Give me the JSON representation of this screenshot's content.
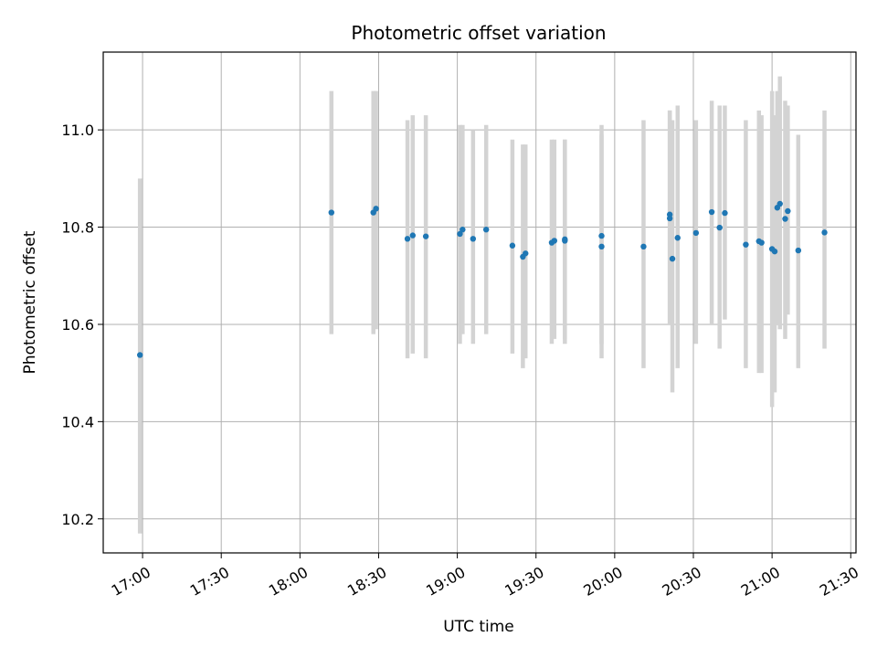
{
  "chart_data": {
    "type": "scatter",
    "title": "Photometric offset variation",
    "xlabel": "UTC time",
    "ylabel": "Photometric offset",
    "xlim": [
      "16:45",
      "21:32"
    ],
    "ylim": [
      10.13,
      11.16
    ],
    "xticks": [
      "17:00",
      "17:30",
      "18:00",
      "18:30",
      "19:00",
      "19:30",
      "20:00",
      "20:30",
      "21:00",
      "21:30"
    ],
    "yticks": [
      10.2,
      10.4,
      10.6,
      10.8,
      11.0
    ],
    "ytick_labels": [
      "10.2",
      "10.4",
      "10.6",
      "10.8",
      "11.0"
    ],
    "grid": true,
    "colors": {
      "points": "#1f77b4",
      "errorbars": "#d3d3d3",
      "grid": "#b0b0b0"
    },
    "points": [
      {
        "x": "16:59",
        "y": 10.537,
        "ymin": 10.17,
        "ymax": 10.9
      },
      {
        "x": "18:12",
        "y": 10.83,
        "ymin": 10.58,
        "ymax": 11.08
      },
      {
        "x": "18:28",
        "y": 10.83,
        "ymin": 10.58,
        "ymax": 11.08
      },
      {
        "x": "18:29",
        "y": 10.838,
        "ymin": 10.59,
        "ymax": 11.08
      },
      {
        "x": "18:41",
        "y": 10.776,
        "ymin": 10.53,
        "ymax": 11.02
      },
      {
        "x": "18:43",
        "y": 10.783,
        "ymin": 10.54,
        "ymax": 11.03
      },
      {
        "x": "18:48",
        "y": 10.781,
        "ymin": 10.53,
        "ymax": 11.03
      },
      {
        "x": "19:01",
        "y": 10.786,
        "ymin": 10.56,
        "ymax": 11.01
      },
      {
        "x": "19:02",
        "y": 10.795,
        "ymin": 10.58,
        "ymax": 11.01
      },
      {
        "x": "19:06",
        "y": 10.776,
        "ymin": 10.56,
        "ymax": 11.0
      },
      {
        "x": "19:11",
        "y": 10.795,
        "ymin": 10.58,
        "ymax": 11.01
      },
      {
        "x": "19:21",
        "y": 10.762,
        "ymin": 10.54,
        "ymax": 10.98
      },
      {
        "x": "19:25",
        "y": 10.739,
        "ymin": 10.51,
        "ymax": 10.97
      },
      {
        "x": "19:26",
        "y": 10.746,
        "ymin": 10.53,
        "ymax": 10.97
      },
      {
        "x": "19:36",
        "y": 10.768,
        "ymin": 10.56,
        "ymax": 10.98
      },
      {
        "x": "19:37",
        "y": 10.772,
        "ymin": 10.57,
        "ymax": 10.98
      },
      {
        "x": "19:41",
        "y": 10.775,
        "ymin": 10.57,
        "ymax": 10.98
      },
      {
        "x": "19:41",
        "y": 10.772,
        "ymin": 10.56,
        "ymax": 10.98
      },
      {
        "x": "19:55",
        "y": 10.76,
        "ymin": 10.53,
        "ymax": 10.99
      },
      {
        "x": "19:55",
        "y": 10.782,
        "ymin": 10.56,
        "ymax": 11.01
      },
      {
        "x": "20:11",
        "y": 10.76,
        "ymin": 10.51,
        "ymax": 11.02
      },
      {
        "x": "20:21",
        "y": 10.826,
        "ymin": 10.6,
        "ymax": 11.04
      },
      {
        "x": "20:21",
        "y": 10.818,
        "ymin": 10.6,
        "ymax": 11.04
      },
      {
        "x": "20:22",
        "y": 10.735,
        "ymin": 10.46,
        "ymax": 11.02
      },
      {
        "x": "20:24",
        "y": 10.778,
        "ymin": 10.51,
        "ymax": 11.05
      },
      {
        "x": "20:31",
        "y": 10.788,
        "ymin": 10.56,
        "ymax": 11.02
      },
      {
        "x": "20:37",
        "y": 10.831,
        "ymin": 10.6,
        "ymax": 11.06
      },
      {
        "x": "20:40",
        "y": 10.799,
        "ymin": 10.55,
        "ymax": 11.05
      },
      {
        "x": "20:42",
        "y": 10.829,
        "ymin": 10.61,
        "ymax": 11.05
      },
      {
        "x": "20:50",
        "y": 10.764,
        "ymin": 10.51,
        "ymax": 11.02
      },
      {
        "x": "20:55",
        "y": 10.771,
        "ymin": 10.5,
        "ymax": 11.04
      },
      {
        "x": "20:56",
        "y": 10.768,
        "ymin": 10.5,
        "ymax": 11.03
      },
      {
        "x": "21:00",
        "y": 10.755,
        "ymin": 10.43,
        "ymax": 11.08
      },
      {
        "x": "21:01",
        "y": 10.75,
        "ymin": 10.46,
        "ymax": 11.03
      },
      {
        "x": "21:02",
        "y": 10.84,
        "ymin": 10.6,
        "ymax": 11.08
      },
      {
        "x": "21:03",
        "y": 10.848,
        "ymin": 10.59,
        "ymax": 11.11
      },
      {
        "x": "21:05",
        "y": 10.817,
        "ymin": 10.57,
        "ymax": 11.06
      },
      {
        "x": "21:06",
        "y": 10.833,
        "ymin": 10.62,
        "ymax": 11.05
      },
      {
        "x": "21:10",
        "y": 10.752,
        "ymin": 10.51,
        "ymax": 10.99
      },
      {
        "x": "21:20",
        "y": 10.789,
        "ymin": 10.55,
        "ymax": 11.04
      }
    ]
  }
}
